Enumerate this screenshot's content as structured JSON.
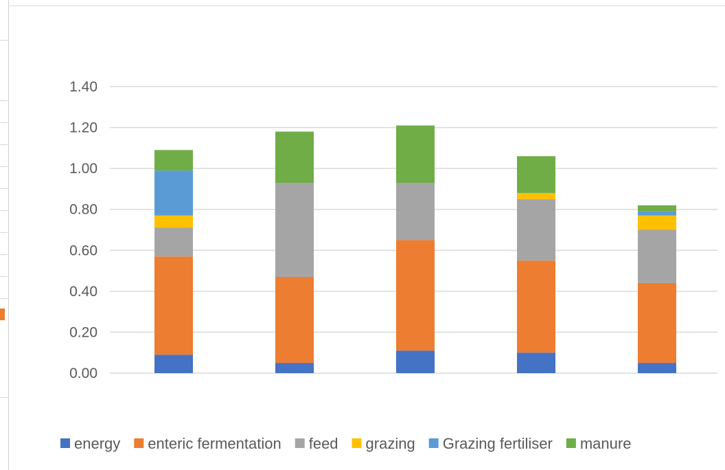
{
  "chart_data": {
    "type": "bar",
    "stacked": true,
    "title": "",
    "xlabel": "",
    "ylabel": "",
    "ylim": [
      0,
      1.4
    ],
    "yticks": [
      "0.00",
      "0.20",
      "0.40",
      "0.60",
      "0.80",
      "1.00",
      "1.20",
      "1.40"
    ],
    "grid": true,
    "legend_position": "bottom",
    "categories": [
      "",
      "",
      "",
      "",
      ""
    ],
    "series": [
      {
        "name": "energy",
        "color": "#4472c4",
        "values": [
          0.09,
          0.05,
          0.11,
          0.1,
          0.05
        ]
      },
      {
        "name": "enteric fermentation",
        "color": "#ed7d31",
        "values": [
          0.48,
          0.42,
          0.54,
          0.45,
          0.39
        ]
      },
      {
        "name": "feed",
        "color": "#a5a5a5",
        "values": [
          0.14,
          0.46,
          0.28,
          0.3,
          0.26
        ]
      },
      {
        "name": "grazing",
        "color": "#ffc000",
        "values": [
          0.06,
          0.0,
          0.0,
          0.03,
          0.07
        ]
      },
      {
        "name": "Grazing fertiliser",
        "color": "#5b9bd5",
        "values": [
          0.22,
          0.0,
          0.0,
          0.0,
          0.02
        ]
      },
      {
        "name": "manure",
        "color": "#70ad47",
        "values": [
          0.1,
          0.25,
          0.28,
          0.18,
          0.03
        ]
      }
    ]
  }
}
